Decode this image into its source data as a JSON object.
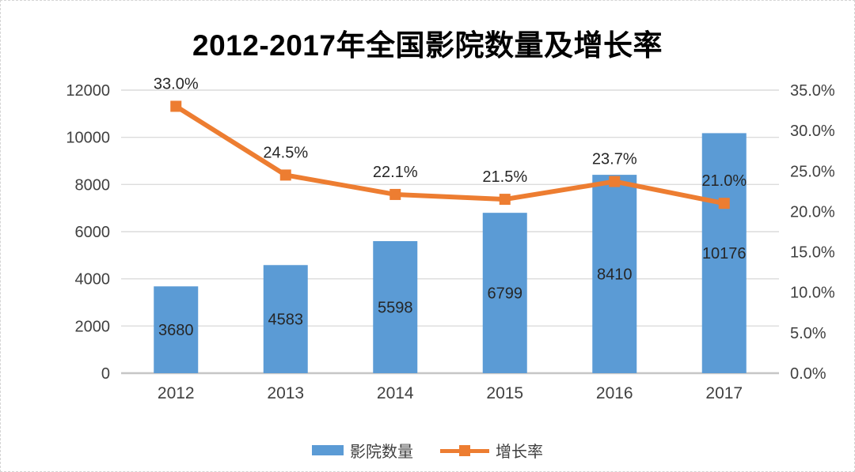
{
  "title": "2012-2017年全国影院数量及增长率",
  "colors": {
    "bar": "#5B9BD5",
    "line": "#ED7D31",
    "grid": "#DCDCDC",
    "axis_line": "#C6C6C6",
    "axis_text": "#404040",
    "data_label_text": "#262626",
    "title_text": "#000000",
    "frame_border": "#D4D4D4"
  },
  "legend": [
    {
      "label": "影院数量",
      "type": "bar"
    },
    {
      "label": "增长率",
      "type": "line"
    }
  ],
  "chart_data": {
    "type": "bar",
    "subtype": "bar-line-combo",
    "title": "2012-2017年全国影院数量及增长率",
    "categories": [
      "2012",
      "2013",
      "2014",
      "2015",
      "2016",
      "2017"
    ],
    "series": [
      {
        "name": "影院数量",
        "type": "bar",
        "axis": "left",
        "values": [
          3680,
          4583,
          5598,
          6799,
          8410,
          10176
        ],
        "labels": [
          "3680",
          "4583",
          "5598",
          "6799",
          "8410",
          "10176"
        ]
      },
      {
        "name": "增长率",
        "type": "line",
        "axis": "right",
        "values": [
          33.0,
          24.5,
          22.1,
          21.5,
          23.7,
          21.0
        ],
        "labels": [
          "33.0%",
          "24.5%",
          "22.1%",
          "21.5%",
          "23.7%",
          "21.0%"
        ]
      }
    ],
    "left_axis": {
      "min": 0,
      "max": 12000,
      "step": 2000,
      "ticks": [
        "0",
        "2000",
        "4000",
        "6000",
        "8000",
        "10000",
        "12000"
      ]
    },
    "right_axis": {
      "min": 0,
      "max": 35,
      "step": 5,
      "ticks": [
        "0.0%",
        "5.0%",
        "10.0%",
        "15.0%",
        "20.0%",
        "25.0%",
        "30.0%",
        "35.0%"
      ]
    },
    "grid": true,
    "legend_position": "bottom"
  }
}
